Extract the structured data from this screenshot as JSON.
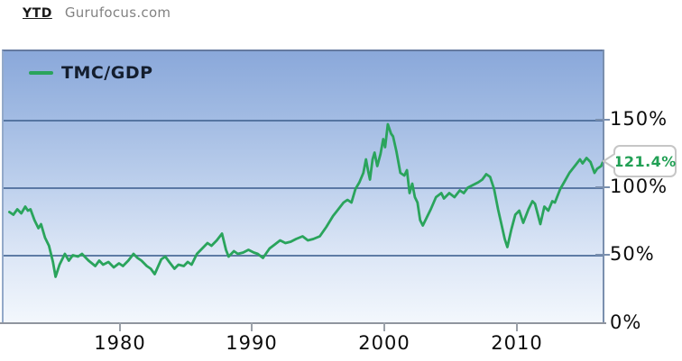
{
  "header": {
    "period_label": "YTD",
    "brand": "Gurufocus.com"
  },
  "legend": {
    "label": "TMC/GDP"
  },
  "callout": {
    "value_label": "121.4%"
  },
  "colors": {
    "line": "#2aa45c",
    "grid": "#486896",
    "y_axis": "#7a8fae",
    "x_axis": "#8f959e",
    "plot_bg_top": "#8aa8da",
    "plot_bg_bottom": "#f3f7fd",
    "callout_text": "#22a055",
    "legend_text": "#141e2e",
    "brand_text": "#828282"
  },
  "chart_data": {
    "type": "line",
    "title": "TMC/GDP",
    "xlabel": "",
    "ylabel": "",
    "legend_position": "top-left",
    "grid": true,
    "xlim": [
      1971.2,
      2016.55
    ],
    "ylim": [
      0,
      202
    ],
    "y_ticks": [
      {
        "value": 150,
        "label": "150%"
      },
      {
        "value": 100,
        "label": "100%"
      },
      {
        "value": 50,
        "label": "50%"
      },
      {
        "value": 0,
        "label": "0%"
      }
    ],
    "x_ticks": [
      {
        "value": 1980,
        "label": "1980"
      },
      {
        "value": 1990,
        "label": "1990"
      },
      {
        "value": 2000,
        "label": "2000"
      },
      {
        "value": 2010,
        "label": "2010"
      }
    ],
    "last_value": 121.4,
    "last_value_label": "121.4%",
    "series": [
      {
        "name": "TMC/GDP",
        "x": [
          1971.5,
          1971.8,
          1972.1,
          1972.4,
          1972.7,
          1972.9,
          1973.1,
          1973.4,
          1973.7,
          1973.9,
          1974.2,
          1974.5,
          1974.8,
          1975.0,
          1975.3,
          1975.7,
          1976.0,
          1976.3,
          1976.7,
          1977.0,
          1977.5,
          1978.0,
          1978.3,
          1978.6,
          1979.0,
          1979.4,
          1979.8,
          1980.1,
          1980.5,
          1980.9,
          1981.2,
          1981.5,
          1981.9,
          1982.2,
          1982.5,
          1983.0,
          1983.3,
          1983.6,
          1984.0,
          1984.3,
          1984.7,
          1985.0,
          1985.3,
          1985.7,
          1986.2,
          1986.5,
          1986.8,
          1987.2,
          1987.6,
          1987.9,
          1988.1,
          1988.5,
          1988.8,
          1989.2,
          1989.6,
          1990.0,
          1990.3,
          1990.7,
          1991.2,
          1991.6,
          1992.0,
          1992.4,
          1992.8,
          1993.2,
          1993.7,
          1994.1,
          1994.5,
          1995.0,
          1995.5,
          1996.0,
          1996.4,
          1996.8,
          1997.1,
          1997.4,
          1997.7,
          1998.0,
          1998.3,
          1998.5,
          1998.65,
          1998.8,
          1999.0,
          1999.15,
          1999.35,
          1999.6,
          1999.8,
          1999.95,
          2000.15,
          2000.4,
          2000.55,
          2000.8,
          2001.1,
          2001.4,
          2001.6,
          2001.8,
          2002.0,
          2002.2,
          2002.4,
          2002.6,
          2002.8,
          2003.1,
          2003.4,
          2003.8,
          2004.2,
          2004.4,
          2004.8,
          2005.2,
          2005.6,
          2005.9,
          2006.2,
          2006.6,
          2007.0,
          2007.3,
          2007.6,
          2007.9,
          2008.2,
          2008.5,
          2008.8,
          2009.0,
          2009.2,
          2009.5,
          2009.8,
          2010.1,
          2010.4,
          2010.8,
          2011.1,
          2011.3,
          2011.7,
          2012.0,
          2012.3,
          2012.6,
          2012.8,
          2013.2,
          2013.5,
          2013.9,
          2014.3,
          2014.7,
          2014.9,
          2015.2,
          2015.5,
          2015.8,
          2016.0,
          2016.3,
          2016.5
        ],
        "values": [
          83,
          81,
          85,
          82,
          87,
          84,
          85,
          77,
          71,
          74,
          64,
          58,
          46,
          35,
          44,
          52,
          47,
          51,
          50,
          52,
          47,
          43,
          47,
          44,
          46,
          42,
          45,
          43,
          47,
          52,
          49,
          47,
          43,
          41,
          37,
          48,
          50,
          46,
          41,
          44,
          43,
          46,
          44,
          52,
          57,
          60,
          58,
          62,
          67,
          55,
          50,
          54,
          52,
          53,
          55,
          53,
          52,
          49,
          56,
          59,
          62,
          60,
          61,
          63,
          65,
          62,
          63,
          65,
          72,
          80,
          85,
          90,
          92,
          90,
          100,
          105,
          112,
          122,
          114,
          107,
          122,
          127,
          117,
          126,
          137,
          131,
          148,
          141,
          139,
          128,
          112,
          110,
          114,
          97,
          104,
          94,
          90,
          77,
          73,
          79,
          85,
          94,
          97,
          93,
          97,
          94,
          99,
          97,
          101,
          103,
          105,
          107,
          111,
          109,
          100,
          85,
          72,
          63,
          57,
          70,
          81,
          84,
          75,
          85,
          91,
          89,
          74,
          87,
          84,
          91,
          90,
          100,
          105,
          112,
          117,
          122,
          119,
          123,
          120,
          112,
          115,
          117,
          121.4
        ]
      }
    ]
  }
}
